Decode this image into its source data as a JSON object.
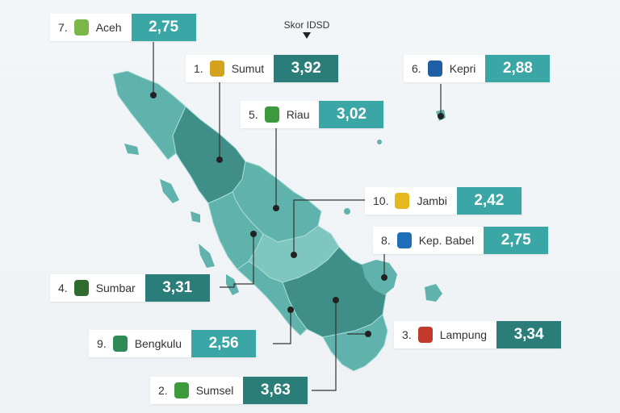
{
  "legend": {
    "label": "Skor IDSD"
  },
  "regions": [
    {
      "id": "aceh",
      "rank": "7.",
      "name": "Aceh",
      "score": "2,75",
      "tone": "mid",
      "logo_color": "#7ab648"
    },
    {
      "id": "sumut",
      "rank": "1.",
      "name": "Sumut",
      "score": "3,92",
      "tone": "dark",
      "logo_color": "#d4a21c"
    },
    {
      "id": "kepri",
      "rank": "6.",
      "name": "Kepri",
      "score": "2,88",
      "tone": "mid",
      "logo_color": "#1f5fa8"
    },
    {
      "id": "riau",
      "rank": "5.",
      "name": "Riau",
      "score": "3,02",
      "tone": "mid",
      "logo_color": "#3c9a3c"
    },
    {
      "id": "jambi",
      "rank": "10.",
      "name": "Jambi",
      "score": "2,42",
      "tone": "mid",
      "logo_color": "#e6b820"
    },
    {
      "id": "babel",
      "rank": "8.",
      "name": "Kep. Babel",
      "score": "2,75",
      "tone": "mid",
      "logo_color": "#1f6fb8"
    },
    {
      "id": "sumbar",
      "rank": "4.",
      "name": "Sumbar",
      "score": "3,31",
      "tone": "dark",
      "logo_color": "#2f6b2f"
    },
    {
      "id": "lampung",
      "rank": "3.",
      "name": "Lampung",
      "score": "3,34",
      "tone": "dark",
      "logo_color": "#c0392b"
    },
    {
      "id": "bengkulu",
      "rank": "9.",
      "name": "Bengkulu",
      "score": "2,56",
      "tone": "mid",
      "logo_color": "#2e8b57"
    },
    {
      "id": "sumsel",
      "rank": "2.",
      "name": "Sumsel",
      "score": "3,63",
      "tone": "dark",
      "logo_color": "#3c9a3c"
    }
  ],
  "colors": {
    "dark": "#2b7d79",
    "mid": "#3aa6a6",
    "land_dark": "#3f8f88",
    "land_mid": "#5fb3ac",
    "land_light": "#7ec6bf",
    "border": "#a8dcd6"
  }
}
